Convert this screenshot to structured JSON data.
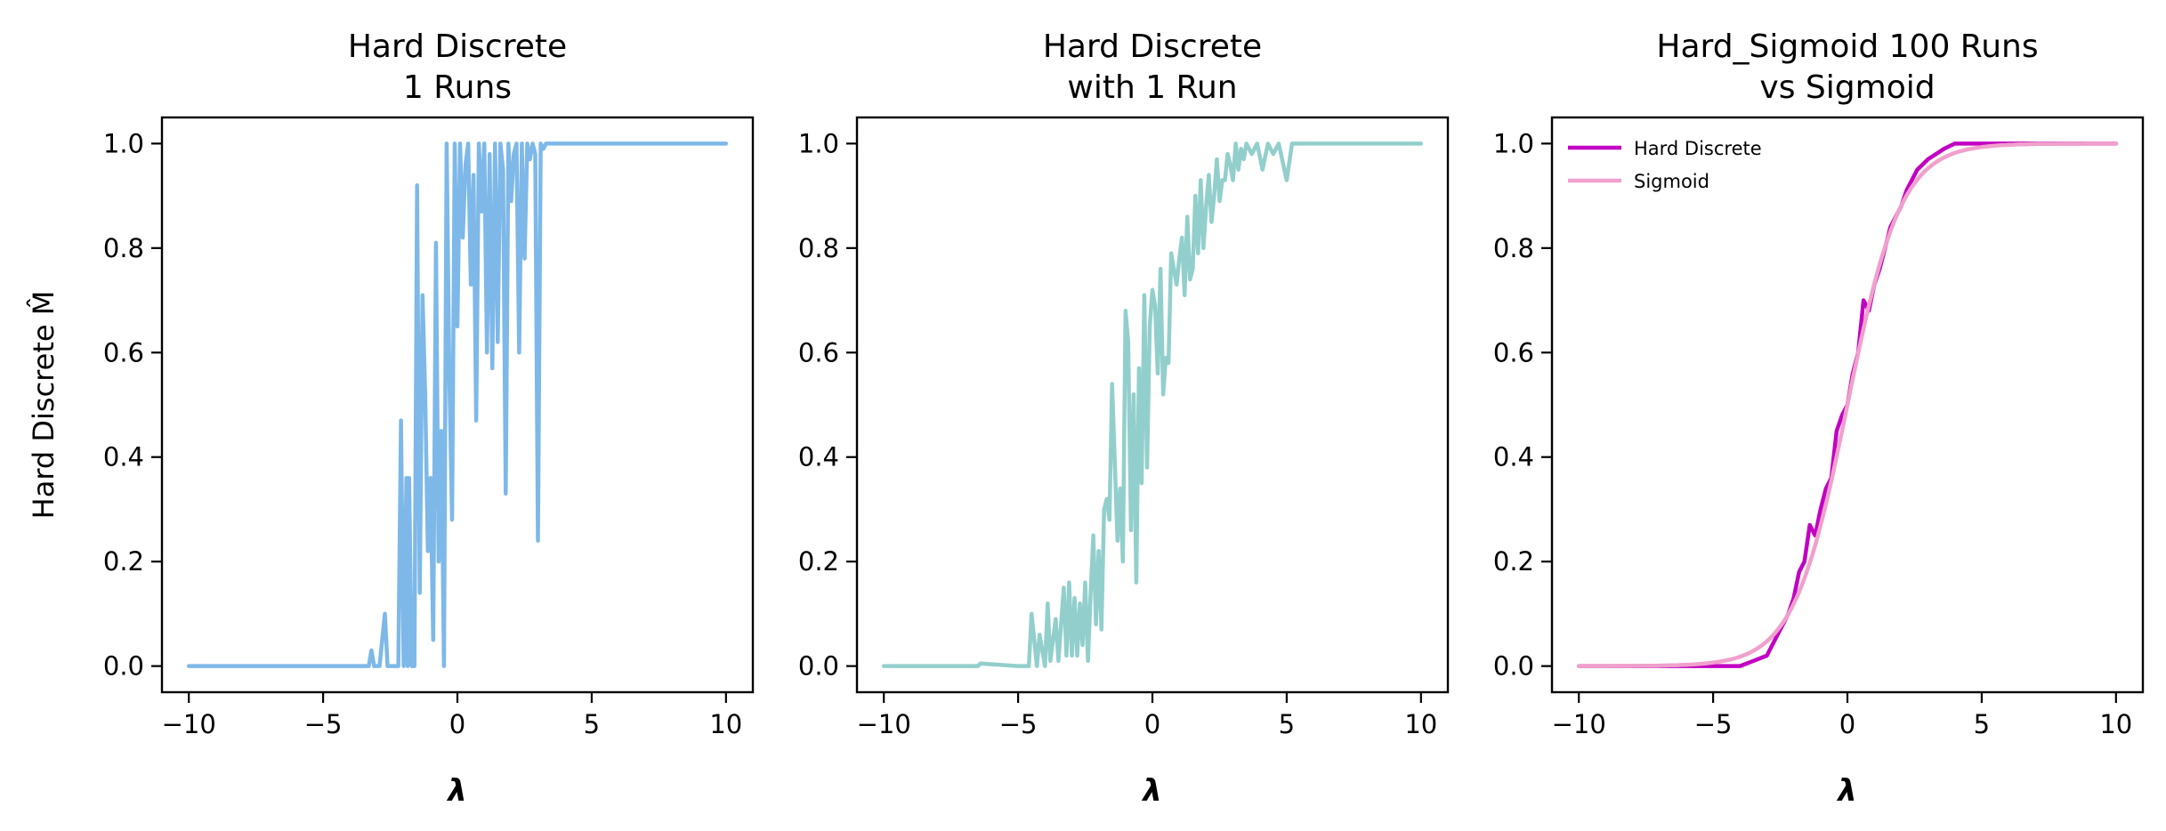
{
  "chart_data": [
    {
      "type": "line",
      "title": [
        "Hard Discrete",
        "1 Runs"
      ],
      "xlabel": "λ",
      "ylabel": "Hard Discrete M̂",
      "xlim": [
        -11,
        11
      ],
      "ylim": [
        -0.05,
        1.05
      ],
      "xticks": [
        -10,
        -5,
        0,
        5,
        10
      ],
      "xtick_labels": [
        "−10",
        "−5",
        "0",
        "5",
        "10"
      ],
      "yticks": [
        0.0,
        0.2,
        0.4,
        0.6,
        0.8,
        1.0
      ],
      "ytick_labels": [
        "0.0",
        "0.2",
        "0.4",
        "0.6",
        "0.8",
        "1.0"
      ],
      "grid": false,
      "series": [
        {
          "color": "#7db8e8",
          "x": [
            -10,
            -3.3,
            -3.2,
            -3.1,
            -2.9,
            -2.7,
            -2.6,
            -2.4,
            -2.2,
            -2.1,
            -2.0,
            -1.9,
            -1.85,
            -1.8,
            -1.7,
            -1.6,
            -1.5,
            -1.4,
            -1.3,
            -1.2,
            -1.1,
            -1.0,
            -0.9,
            -0.8,
            -0.7,
            -0.6,
            -0.5,
            -0.4,
            -0.3,
            -0.2,
            -0.1,
            0.0,
            0.1,
            0.2,
            0.3,
            0.4,
            0.5,
            0.6,
            0.7,
            0.8,
            0.9,
            1.0,
            1.1,
            1.2,
            1.3,
            1.4,
            1.5,
            1.6,
            1.7,
            1.8,
            1.9,
            2.0,
            2.1,
            2.2,
            2.3,
            2.4,
            2.5,
            2.6,
            2.7,
            2.8,
            2.9,
            3.0,
            3.1,
            3.2,
            3.3,
            3.5,
            10
          ],
          "y": [
            0,
            0,
            0.03,
            0,
            0,
            0.1,
            0,
            0,
            0,
            0.47,
            0,
            0.36,
            0,
            0.36,
            0,
            0,
            0.92,
            0.14,
            0.71,
            0.52,
            0.22,
            0.36,
            0.05,
            0.81,
            0.2,
            0.45,
            0,
            1.0,
            0.56,
            0.28,
            1.0,
            0.65,
            1.0,
            0.82,
            0.96,
            1.0,
            0.73,
            0.94,
            0.47,
            1.0,
            0.87,
            1.0,
            0.6,
            0.98,
            0.57,
            1.0,
            0.62,
            1.0,
            0.95,
            0.33,
            1.0,
            0.89,
            0.98,
            1.0,
            0.6,
            1.0,
            0.78,
            1.0,
            0.97,
            1.0,
            0.98,
            0.24,
            1.0,
            0.99,
            1.0,
            1.0,
            1.0
          ]
        }
      ]
    },
    {
      "type": "line",
      "title": [
        "Hard Discrete",
        "with 1 Run"
      ],
      "xlabel": "λ",
      "ylabel": "",
      "xlim": [
        -11,
        11
      ],
      "ylim": [
        -0.05,
        1.05
      ],
      "xticks": [
        -10,
        -5,
        0,
        5,
        10
      ],
      "xtick_labels": [
        "−10",
        "−5",
        "0",
        "5",
        "10"
      ],
      "yticks": [
        0.0,
        0.2,
        0.4,
        0.6,
        0.8,
        1.0
      ],
      "ytick_labels": [
        "0.0",
        "0.2",
        "0.4",
        "0.6",
        "0.8",
        "1.0"
      ],
      "grid": false,
      "series": [
        {
          "color": "#92cfcc",
          "x": [
            -10,
            -6.5,
            -6.4,
            -5.0,
            -4.6,
            -4.5,
            -4.3,
            -4.2,
            -4.0,
            -3.9,
            -3.8,
            -3.6,
            -3.5,
            -3.3,
            -3.2,
            -3.1,
            -3.0,
            -2.9,
            -2.8,
            -2.7,
            -2.6,
            -2.5,
            -2.4,
            -2.3,
            -2.2,
            -2.1,
            -2.0,
            -1.9,
            -1.8,
            -1.7,
            -1.6,
            -1.5,
            -1.4,
            -1.3,
            -1.2,
            -1.1,
            -1.0,
            -0.9,
            -0.8,
            -0.7,
            -0.6,
            -0.5,
            -0.4,
            -0.3,
            -0.2,
            -0.1,
            0.0,
            0.1,
            0.2,
            0.3,
            0.4,
            0.5,
            0.6,
            0.7,
            0.8,
            0.9,
            1.0,
            1.1,
            1.2,
            1.3,
            1.4,
            1.5,
            1.6,
            1.7,
            1.8,
            1.9,
            2.0,
            2.1,
            2.2,
            2.3,
            2.4,
            2.5,
            2.6,
            2.7,
            2.8,
            2.9,
            3.0,
            3.1,
            3.2,
            3.3,
            3.4,
            3.5,
            3.7,
            3.9,
            4.1,
            4.3,
            4.5,
            4.7,
            5.0,
            5.2,
            5.5,
            5.8,
            10
          ],
          "y": [
            0,
            0,
            0.005,
            0,
            0,
            0.1,
            0,
            0.06,
            0,
            0.12,
            0.01,
            0.09,
            0.01,
            0.15,
            0.02,
            0.16,
            0.02,
            0.13,
            0.02,
            0.12,
            0.04,
            0.16,
            0.01,
            0.14,
            0.25,
            0.08,
            0.22,
            0.07,
            0.3,
            0.32,
            0.28,
            0.54,
            0.39,
            0.24,
            0.34,
            0.2,
            0.68,
            0.62,
            0.26,
            0.52,
            0.16,
            0.57,
            0.35,
            0.71,
            0.38,
            0.65,
            0.72,
            0.69,
            0.56,
            0.76,
            0.52,
            0.59,
            0.58,
            0.79,
            0.76,
            0.73,
            0.78,
            0.82,
            0.71,
            0.86,
            0.74,
            0.76,
            0.9,
            0.79,
            0.93,
            0.8,
            0.88,
            0.94,
            0.85,
            0.9,
            0.97,
            0.89,
            0.93,
            0.93,
            0.98,
            0.96,
            0.93,
            1.0,
            0.95,
            0.99,
            0.97,
            1.0,
            0.98,
            1.0,
            0.95,
            1.0,
            0.98,
            1.0,
            0.93,
            1.0,
            1.0,
            1.0,
            1.0
          ]
        }
      ]
    },
    {
      "type": "line",
      "title": [
        "Hard_Sigmoid 100 Runs",
        "vs Sigmoid"
      ],
      "xlabel": "λ",
      "ylabel": "",
      "xlim": [
        -11,
        11
      ],
      "ylim": [
        -0.05,
        1.05
      ],
      "xticks": [
        -10,
        -5,
        0,
        5,
        10
      ],
      "xtick_labels": [
        "−10",
        "−5",
        "0",
        "5",
        "10"
      ],
      "yticks": [
        0.0,
        0.2,
        0.4,
        0.6,
        0.8,
        1.0
      ],
      "ytick_labels": [
        "0.0",
        "0.2",
        "0.4",
        "0.6",
        "0.8",
        "1.0"
      ],
      "grid": false,
      "legend_position": "top-left",
      "series": [
        {
          "name": "Hard Discrete",
          "color": "#c200c2",
          "x": [
            -10,
            -4.0,
            -3.5,
            -3.0,
            -2.8,
            -2.6,
            -2.4,
            -2.2,
            -2.0,
            -1.8,
            -1.6,
            -1.4,
            -1.2,
            -1.0,
            -0.8,
            -0.6,
            -0.4,
            -0.2,
            0.0,
            0.2,
            0.4,
            0.6,
            0.8,
            1.0,
            1.2,
            1.4,
            1.6,
            1.8,
            2.0,
            2.2,
            2.4,
            2.6,
            2.8,
            3.0,
            3.3,
            3.6,
            4.0,
            4.5,
            5.0,
            10
          ],
          "y": [
            0,
            0.0,
            0.01,
            0.02,
            0.04,
            0.06,
            0.08,
            0.1,
            0.13,
            0.18,
            0.2,
            0.27,
            0.25,
            0.3,
            0.34,
            0.36,
            0.45,
            0.48,
            0.5,
            0.56,
            0.6,
            0.7,
            0.68,
            0.73,
            0.76,
            0.8,
            0.84,
            0.86,
            0.88,
            0.91,
            0.93,
            0.95,
            0.96,
            0.97,
            0.98,
            0.99,
            1.0,
            1.0,
            1.0,
            1.0
          ]
        },
        {
          "name": "Sigmoid",
          "color": "#f0a0cc",
          "function": "sigmoid",
          "x_range": [
            -10,
            10
          ]
        }
      ]
    }
  ]
}
